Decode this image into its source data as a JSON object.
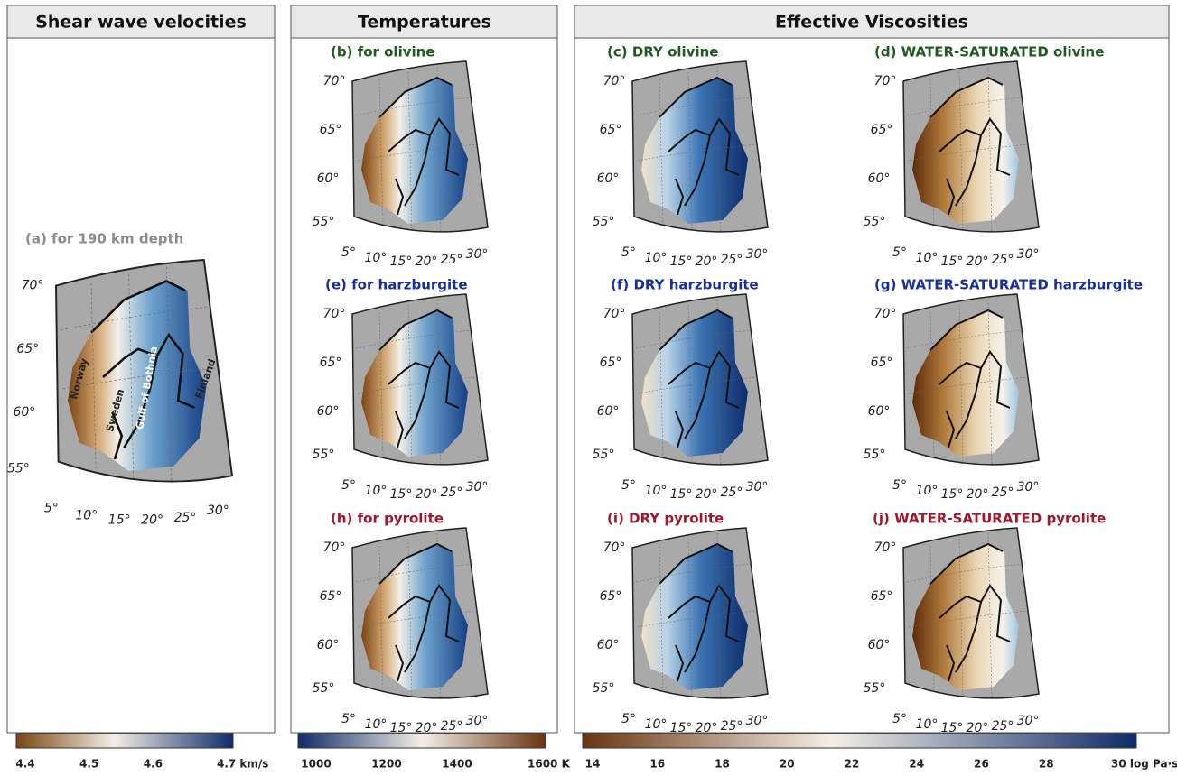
{
  "columns": [
    {
      "title": "Shear wave velocities"
    },
    {
      "title": "Temperatures"
    },
    {
      "title": "Effective Viscosities"
    }
  ],
  "panels": [
    {
      "label": "(a) for 190 km depth"
    },
    {
      "label": "(b) for olivine"
    },
    {
      "label": "(c) DRY olivine"
    },
    {
      "label": "(d) WATER-SATURATED olivine"
    },
    {
      "label": "(e) for harzburgite"
    },
    {
      "label": "(f) DRY harzburgite"
    },
    {
      "label": "(g) WATER-SATURATED harzburgite"
    },
    {
      "label": "(h) for pyrolite"
    },
    {
      "label": "(i) DRY pyrolite"
    },
    {
      "label": "(j) WATER-SATURATED pyrolite"
    }
  ],
  "region_labels": [
    "Norway",
    "Sweden",
    "Gulf of Bothnia",
    "Finland"
  ],
  "map_lat_labels": [
    "70°",
    "65°",
    "60°",
    "55°"
  ],
  "map_lon_labels": [
    "5°",
    "10°",
    "15°",
    "20°",
    "25°",
    "30°"
  ],
  "colorbars": [
    {
      "ticks": [
        "4.4",
        "4.5",
        "4.6",
        "4.7 km/s"
      ]
    },
    {
      "ticks": [
        "1000",
        "1200",
        "1400",
        "1600 K"
      ]
    },
    {
      "ticks": [
        "14",
        "16",
        "18",
        "20",
        "22",
        "24",
        "26",
        "28",
        "30 log Pa·s"
      ]
    }
  ]
}
